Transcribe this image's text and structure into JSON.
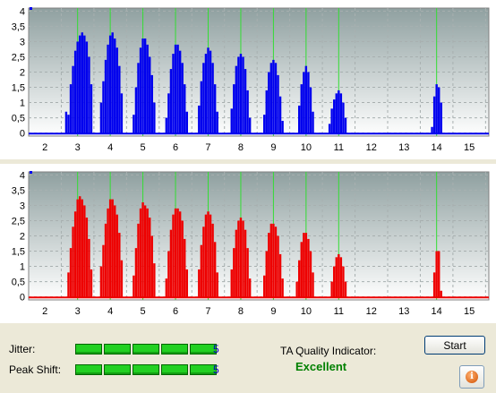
{
  "chart_data": [
    {
      "type": "bar",
      "name": "top",
      "color": "#0000ee",
      "xlim": [
        1.5,
        15.6
      ],
      "ylim": [
        -0.1,
        4.1
      ],
      "x_ticks": [
        "2",
        "3",
        "4",
        "5",
        "6",
        "7",
        "8",
        "9",
        "10",
        "11",
        "12",
        "13",
        "14",
        "15"
      ],
      "y_ticks": [
        "0",
        "0,5",
        "1",
        "1,5",
        "2",
        "2,5",
        "3",
        "3,5",
        "4"
      ],
      "reference_lines": [
        3,
        4,
        5,
        6,
        7,
        8,
        9,
        10,
        11,
        14
      ],
      "clusters": [
        {
          "x": [
            2.65,
            2.72,
            2.79,
            2.86,
            2.93,
            3.0,
            3.07,
            3.14,
            3.21,
            3.28,
            3.35,
            3.42
          ],
          "y": [
            0.7,
            0.6,
            1.6,
            2.2,
            2.7,
            3.0,
            3.2,
            3.3,
            3.2,
            3.0,
            2.5,
            1.6
          ]
        },
        {
          "x": [
            3.72,
            3.79,
            3.86,
            3.93,
            4.0,
            4.07,
            4.14,
            4.21,
            4.28,
            4.35
          ],
          "y": [
            1.0,
            1.7,
            2.4,
            2.9,
            3.2,
            3.3,
            3.1,
            2.8,
            2.2,
            1.3
          ]
        },
        {
          "x": [
            4.72,
            4.79,
            4.86,
            4.93,
            5.0,
            5.07,
            5.14,
            5.21,
            5.28,
            5.35
          ],
          "y": [
            0.6,
            1.5,
            2.3,
            2.8,
            3.1,
            3.1,
            2.9,
            2.5,
            1.9,
            1.0
          ]
        },
        {
          "x": [
            5.72,
            5.79,
            5.86,
            5.93,
            6.0,
            6.07,
            6.14,
            6.21,
            6.28,
            6.35
          ],
          "y": [
            0.5,
            1.3,
            2.1,
            2.6,
            2.9,
            2.9,
            2.7,
            2.3,
            1.6,
            0.7
          ]
        },
        {
          "x": [
            6.72,
            6.79,
            6.86,
            6.93,
            7.0,
            7.07,
            7.14,
            7.21,
            7.28
          ],
          "y": [
            0.9,
            1.7,
            2.3,
            2.6,
            2.8,
            2.7,
            2.3,
            1.6,
            0.7
          ]
        },
        {
          "x": [
            7.72,
            7.79,
            7.86,
            7.93,
            8.0,
            8.07,
            8.14,
            8.21,
            8.28
          ],
          "y": [
            0.8,
            1.6,
            2.2,
            2.5,
            2.6,
            2.5,
            2.1,
            1.4,
            0.5
          ]
        },
        {
          "x": [
            8.72,
            8.79,
            8.86,
            8.93,
            9.0,
            9.07,
            9.14,
            9.21,
            9.28
          ],
          "y": [
            0.6,
            1.4,
            2.0,
            2.3,
            2.4,
            2.3,
            1.9,
            1.2,
            0.4
          ]
        },
        {
          "x": [
            9.79,
            9.86,
            9.93,
            10.0,
            10.07,
            10.14,
            10.21
          ],
          "y": [
            0.9,
            1.6,
            2.0,
            2.2,
            2.0,
            1.5,
            0.7
          ]
        },
        {
          "x": [
            10.72,
            10.79,
            10.86,
            10.93,
            11.0,
            11.07,
            11.14,
            11.21
          ],
          "y": [
            0.3,
            0.8,
            1.1,
            1.3,
            1.4,
            1.3,
            1.0,
            0.5
          ]
        },
        {
          "x": [
            13.86,
            13.93,
            14.0,
            14.07,
            14.14
          ],
          "y": [
            0.2,
            1.2,
            1.6,
            1.5,
            1.0
          ]
        }
      ]
    },
    {
      "type": "bar",
      "name": "bottom",
      "color": "#ee0000",
      "xlim": [
        1.5,
        15.6
      ],
      "ylim": [
        -0.1,
        4.1
      ],
      "x_ticks": [
        "2",
        "3",
        "4",
        "5",
        "6",
        "7",
        "8",
        "9",
        "10",
        "11",
        "12",
        "13",
        "14",
        "15"
      ],
      "y_ticks": [
        "0",
        "0,5",
        "1",
        "1,5",
        "2",
        "2,5",
        "3",
        "3,5",
        "4"
      ],
      "reference_lines": [
        3,
        4,
        5,
        6,
        7,
        8,
        9,
        10,
        11,
        14
      ],
      "clusters": [
        {
          "x": [
            2.72,
            2.79,
            2.86,
            2.93,
            3.0,
            3.07,
            3.14,
            3.21,
            3.28,
            3.35,
            3.42
          ],
          "y": [
            0.8,
            1.6,
            2.3,
            2.8,
            3.2,
            3.3,
            3.2,
            3.0,
            2.6,
            1.9,
            0.9
          ]
        },
        {
          "x": [
            3.72,
            3.79,
            3.86,
            3.93,
            4.0,
            4.07,
            4.14,
            4.21,
            4.28,
            4.35
          ],
          "y": [
            1.0,
            1.7,
            2.4,
            2.9,
            3.2,
            3.2,
            3.0,
            2.7,
            2.1,
            1.2
          ]
        },
        {
          "x": [
            4.72,
            4.79,
            4.86,
            4.93,
            5.0,
            5.07,
            5.14,
            5.21,
            5.28,
            5.35
          ],
          "y": [
            0.7,
            1.6,
            2.4,
            2.9,
            3.1,
            3.0,
            2.9,
            2.6,
            2.0,
            1.1
          ]
        },
        {
          "x": [
            5.72,
            5.79,
            5.86,
            5.93,
            6.0,
            6.07,
            6.14,
            6.21,
            6.28,
            6.35
          ],
          "y": [
            0.6,
            1.5,
            2.2,
            2.7,
            2.9,
            2.9,
            2.8,
            2.5,
            1.9,
            0.9
          ]
        },
        {
          "x": [
            6.72,
            6.79,
            6.86,
            6.93,
            7.0,
            7.07,
            7.14,
            7.21,
            7.28
          ],
          "y": [
            0.9,
            1.7,
            2.3,
            2.7,
            2.8,
            2.7,
            2.4,
            1.8,
            0.8
          ]
        },
        {
          "x": [
            7.72,
            7.79,
            7.86,
            7.93,
            8.0,
            8.07,
            8.14,
            8.21,
            8.28
          ],
          "y": [
            0.9,
            1.6,
            2.2,
            2.5,
            2.6,
            2.5,
            2.2,
            1.6,
            0.6
          ]
        },
        {
          "x": [
            8.72,
            8.79,
            8.86,
            8.93,
            9.0,
            9.07,
            9.14,
            9.21,
            9.28
          ],
          "y": [
            0.7,
            1.5,
            2.1,
            2.4,
            2.4,
            2.3,
            2.0,
            1.4,
            0.6
          ]
        },
        {
          "x": [
            9.72,
            9.79,
            9.86,
            9.93,
            10.0,
            10.07,
            10.14,
            10.21
          ],
          "y": [
            0.5,
            1.2,
            1.8,
            2.1,
            2.1,
            1.9,
            1.5,
            0.8
          ]
        },
        {
          "x": [
            10.79,
            10.86,
            10.93,
            11.0,
            11.07,
            11.14,
            11.21
          ],
          "y": [
            0.5,
            1.0,
            1.3,
            1.4,
            1.3,
            1.0,
            0.5
          ]
        },
        {
          "x": [
            13.86,
            13.93,
            14.0,
            14.07,
            14.14
          ],
          "y": [
            0.0,
            0.8,
            1.5,
            1.5,
            0.2
          ]
        }
      ]
    }
  ],
  "metrics": {
    "jitter_label": "Jitter:",
    "jitter_value": "5",
    "jitter_level": 5,
    "peak_shift_label": "Peak Shift:",
    "peak_shift_value": "5",
    "peak_shift_level": 5,
    "ta_label": "TA Quality Indicator:",
    "ta_value": "Excellent"
  },
  "buttons": {
    "start_label": "Start",
    "info_icon": "info-icon"
  },
  "colors": {
    "meter_green": "#22d022",
    "value_blue": "#0000c0",
    "excellent_green": "#008000"
  }
}
